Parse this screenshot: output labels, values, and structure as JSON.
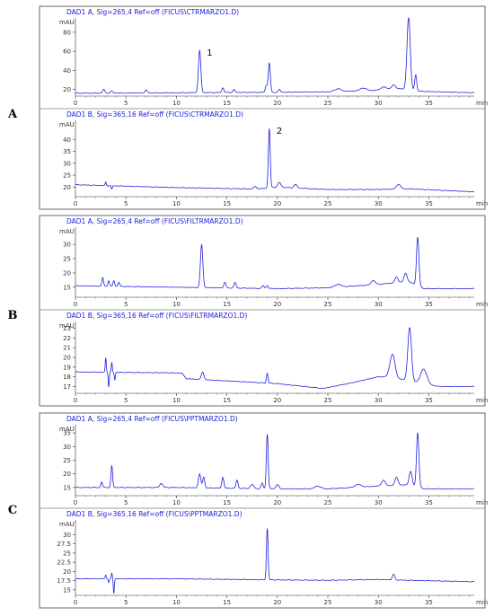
{
  "colors": {
    "trace": "#1f1fe0",
    "frame": "#8a8a8a",
    "axis": "#333333"
  },
  "groups": [
    "A",
    "B",
    "C"
  ],
  "chart_data": [
    {
      "type": "line",
      "group": "A",
      "title": "DAD1 A, Sig=265,4 Ref=off (FICUS\\CTRMARZO1.D)",
      "ylabel": "mAU",
      "xlabel": "min",
      "xlim": [
        0,
        39.5
      ],
      "ylim": [
        13,
        95
      ],
      "yticks": [
        20,
        40,
        60,
        80
      ],
      "xticks": [
        0,
        5,
        10,
        15,
        20,
        25,
        30,
        35
      ],
      "baseline": [
        [
          0,
          16
        ],
        [
          10,
          16.5
        ],
        [
          20,
          17
        ],
        [
          25,
          17.5
        ],
        [
          30,
          19
        ],
        [
          32,
          21
        ],
        [
          34,
          18
        ],
        [
          39.5,
          16.5
        ]
      ],
      "peaks": [
        [
          2.8,
          4,
          0.1
        ],
        [
          3.6,
          2,
          0.1
        ],
        [
          7,
          3,
          0.1
        ],
        [
          12.3,
          44,
          0.12
        ],
        [
          14.6,
          5,
          0.1
        ],
        [
          15.7,
          3,
          0.1
        ],
        [
          18.9,
          7,
          0.1
        ],
        [
          19.2,
          31,
          0.1
        ],
        [
          20.2,
          3,
          0.1
        ],
        [
          26,
          3,
          0.3
        ],
        [
          28.5,
          3,
          0.3
        ],
        [
          30.5,
          3,
          0.3
        ],
        [
          31.5,
          4,
          0.2
        ],
        [
          33.0,
          77,
          0.16
        ],
        [
          33.7,
          17,
          0.1
        ]
      ],
      "annotations": [
        {
          "text": "1",
          "x": 12.3
        }
      ]
    },
    {
      "type": "line",
      "group": "A",
      "title": "DAD1 B, Sig=365,16 Ref=off (FICUS\\CTRMARZO1.D)",
      "ylabel": "mAU",
      "xlabel": "min",
      "xlim": [
        0,
        39.5
      ],
      "ylim": [
        16,
        48
      ],
      "yticks": [
        20,
        25,
        30,
        35,
        40
      ],
      "xticks": [
        0,
        5,
        10,
        15,
        20,
        25,
        30,
        35
      ],
      "baseline": [
        [
          0,
          21
        ],
        [
          10,
          19.8
        ],
        [
          18,
          19.2
        ],
        [
          20,
          20
        ],
        [
          25,
          19
        ],
        [
          30,
          19
        ],
        [
          33,
          19.3
        ],
        [
          39.5,
          18
        ]
      ],
      "peaks": [
        [
          3,
          1.5,
          0.05
        ],
        [
          3.6,
          -1.5,
          0.05
        ],
        [
          17.8,
          1,
          0.15
        ],
        [
          19.2,
          25,
          0.09
        ],
        [
          20.2,
          2,
          0.15
        ],
        [
          21.8,
          1.5,
          0.15
        ],
        [
          32,
          2,
          0.2
        ]
      ],
      "annotations": [
        {
          "text": "2",
          "x": 19.2
        }
      ]
    },
    {
      "type": "line",
      "group": "B",
      "title": "DAD1 A, Sig=265,4 Ref=off (FICUS\\FILTRMARZO1.D)",
      "ylabel": "mAU",
      "xlabel": "min",
      "xlim": [
        0,
        39.5
      ],
      "ylim": [
        11.5,
        36
      ],
      "yticks": [
        15,
        20,
        25,
        30
      ],
      "xticks": [
        0,
        5,
        10,
        15,
        20,
        25,
        30,
        35
      ],
      "baseline": [
        [
          0,
          15.5
        ],
        [
          10,
          15
        ],
        [
          20,
          14.5
        ],
        [
          25,
          14.8
        ],
        [
          30,
          16
        ],
        [
          33,
          17
        ],
        [
          34.5,
          14.5
        ],
        [
          39.5,
          14.5
        ]
      ],
      "peaks": [
        [
          2.7,
          3,
          0.08
        ],
        [
          3.3,
          2,
          0.08
        ],
        [
          3.8,
          2,
          0.08
        ],
        [
          4.3,
          1.5,
          0.08
        ],
        [
          12.5,
          15,
          0.12
        ],
        [
          14.8,
          2,
          0.1
        ],
        [
          15.8,
          2,
          0.1
        ],
        [
          18.6,
          1,
          0.1
        ],
        [
          19,
          1,
          0.1
        ],
        [
          26,
          1,
          0.3
        ],
        [
          29.5,
          1.5,
          0.2
        ],
        [
          31.8,
          2,
          0.15
        ],
        [
          32.7,
          3,
          0.15
        ],
        [
          33.9,
          17,
          0.12
        ]
      ],
      "annotations": []
    },
    {
      "type": "line",
      "group": "B",
      "title": "DAD1 B, Sig=365,16 Ref=off (FICUS\\FILTRMARZO1.D)",
      "ylabel": "mAU",
      "xlabel": "min",
      "xlim": [
        0,
        39.5
      ],
      "ylim": [
        16.3,
        23.7
      ],
      "yticks": [
        17,
        18,
        19,
        20,
        21,
        22,
        23
      ],
      "xticks": [
        0,
        5,
        10,
        15,
        20,
        25,
        30,
        35
      ],
      "baseline": [
        [
          0,
          18.5
        ],
        [
          10.5,
          18.4
        ],
        [
          11,
          17.8
        ],
        [
          20,
          17.3
        ],
        [
          24.5,
          16.8
        ],
        [
          27,
          17.3
        ],
        [
          30,
          18
        ],
        [
          31,
          18
        ],
        [
          36,
          17
        ],
        [
          39.5,
          17
        ]
      ],
      "peaks": [
        [
          3,
          1.5,
          0.05
        ],
        [
          3.3,
          -1.5,
          0.05
        ],
        [
          3.6,
          1,
          0.05
        ],
        [
          3.9,
          -0.8,
          0.05
        ],
        [
          12.6,
          0.8,
          0.12
        ],
        [
          19,
          1,
          0.08
        ],
        [
          31.4,
          2.4,
          0.25
        ],
        [
          33.1,
          5.5,
          0.18
        ],
        [
          34.5,
          1.5,
          0.3
        ]
      ],
      "annotations": []
    },
    {
      "type": "line",
      "group": "C",
      "title": "DAD1 A, Sig=265,4 Ref=off (FICUS\\PPTMARZO1.D)",
      "ylabel": "mAU",
      "xlabel": "min",
      "xlim": [
        0,
        39.5
      ],
      "ylim": [
        12,
        38
      ],
      "yticks": [
        15,
        20,
        25,
        30,
        35
      ],
      "xticks": [
        0,
        5,
        10,
        15,
        20,
        25,
        30,
        35
      ],
      "baseline": [
        [
          0,
          15
        ],
        [
          10,
          15
        ],
        [
          20,
          14.5
        ],
        [
          25,
          14.5
        ],
        [
          30,
          15.5
        ],
        [
          33,
          16
        ],
        [
          34.5,
          14.5
        ],
        [
          39.5,
          14.5
        ]
      ],
      "peaks": [
        [
          2.6,
          2,
          0.08
        ],
        [
          3.6,
          8,
          0.08
        ],
        [
          8.5,
          1.5,
          0.15
        ],
        [
          12.3,
          5,
          0.12
        ],
        [
          12.7,
          4,
          0.1
        ],
        [
          14.6,
          4,
          0.1
        ],
        [
          16,
          3,
          0.1
        ],
        [
          17.5,
          1.5,
          0.15
        ],
        [
          18.5,
          2,
          0.1
        ],
        [
          19,
          20,
          0.09
        ],
        [
          20,
          1.5,
          0.15
        ],
        [
          24,
          1,
          0.3
        ],
        [
          28,
          1,
          0.3
        ],
        [
          30.5,
          2,
          0.2
        ],
        [
          31.8,
          3,
          0.15
        ],
        [
          33.2,
          5,
          0.15
        ],
        [
          33.9,
          20,
          0.12
        ]
      ],
      "annotations": []
    },
    {
      "type": "line",
      "group": "C",
      "title": "DAD1 B, Sig=365,16 Ref=off (FICUS\\PPTMARZO1.D)",
      "ylabel": "mAU",
      "xlabel": "min",
      "xlim": [
        0,
        39.5
      ],
      "ylim": [
        13.5,
        34
      ],
      "yticks": [
        15,
        17.5,
        20,
        22.5,
        25,
        27.5,
        30
      ],
      "xticks": [
        0,
        5,
        10,
        15,
        20,
        25,
        30,
        35
      ],
      "baseline": [
        [
          0,
          18
        ],
        [
          10,
          18
        ],
        [
          20,
          17.7
        ],
        [
          25,
          17.6
        ],
        [
          30,
          17.8
        ],
        [
          33,
          17.6
        ],
        [
          39.5,
          17.2
        ]
      ],
      "peaks": [
        [
          3,
          1,
          0.05
        ],
        [
          3.3,
          -1,
          0.05
        ],
        [
          3.6,
          1.5,
          0.05
        ],
        [
          3.8,
          -4,
          0.05
        ],
        [
          19,
          14,
          0.08
        ],
        [
          31.5,
          1.5,
          0.12
        ]
      ],
      "annotations": []
    }
  ]
}
